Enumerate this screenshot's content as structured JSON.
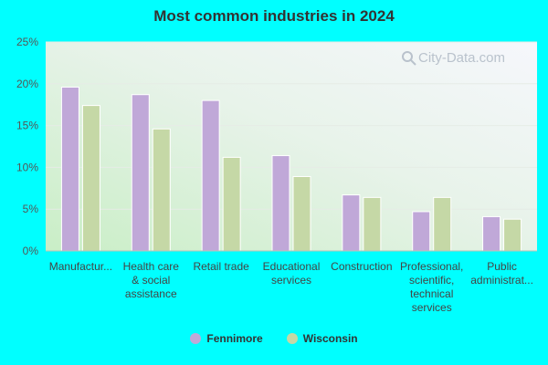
{
  "chart_data": {
    "type": "bar",
    "title": "Most common industries in 2024",
    "categories": [
      "Manufactur...",
      "Health care & social assistance",
      "Retail trade",
      "Educational services",
      "Construction",
      "Professional, scientific, technical services",
      "Public administrat..."
    ],
    "category_lines": [
      [
        "Manufactur..."
      ],
      [
        "Health care",
        "& social",
        "assistance"
      ],
      [
        "Retail trade"
      ],
      [
        "Educational",
        "services"
      ],
      [
        "Construction"
      ],
      [
        "Professional,",
        "scientific,",
        "technical",
        "services"
      ],
      [
        "Public",
        "administrat..."
      ]
    ],
    "series": [
      {
        "name": "Fennimore",
        "color": "#c0a8d8",
        "values": [
          19.6,
          18.7,
          18.0,
          11.4,
          6.7,
          4.7,
          4.1
        ]
      },
      {
        "name": "Wisconsin",
        "color": "#c5d8a6",
        "values": [
          17.4,
          14.6,
          11.2,
          8.9,
          6.4,
          6.4,
          3.8
        ]
      }
    ],
    "yticks": [
      "0%",
      "5%",
      "10%",
      "15%",
      "20%",
      "25%"
    ],
    "ylim": [
      0,
      25
    ],
    "legend_position": "bottom",
    "grid": true,
    "xlabel": "",
    "ylabel": ""
  },
  "watermark": {
    "text": "City-Data.com",
    "icon": "magnifier-icon"
  }
}
